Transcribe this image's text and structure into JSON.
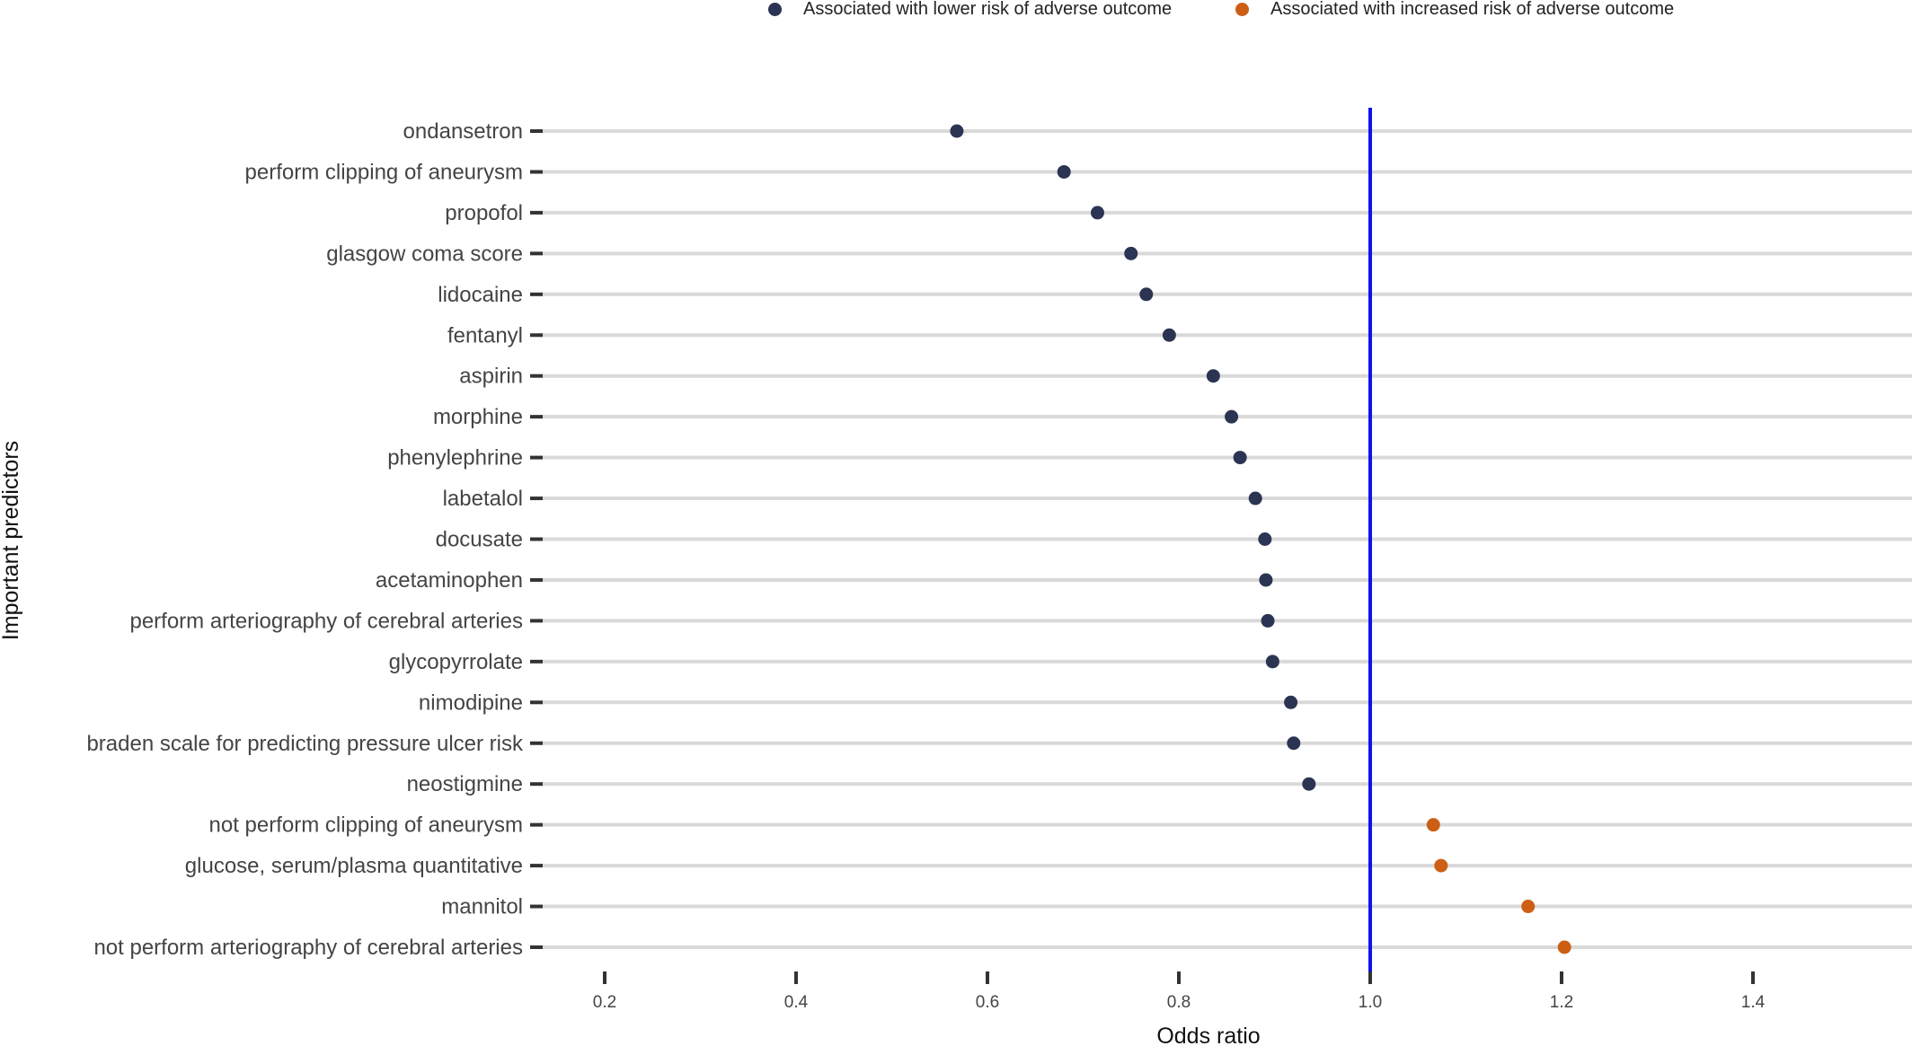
{
  "legend": {
    "lower_label": "Associated with lower risk of adverse outcome",
    "higher_label": "Associated with increased risk of adverse outcome",
    "lower_color": "#2b3452",
    "higher_color": "#cc5f14"
  },
  "chart_data": {
    "type": "scatter",
    "title": "",
    "xlabel": "Odds ratio",
    "ylabel": "Important predictors",
    "xlim": [
      0.12,
      1.55
    ],
    "x_ticks": [
      0.2,
      0.4,
      0.6,
      0.8,
      1.0,
      1.2,
      1.4
    ],
    "x_tick_labels": [
      "0.2",
      "0.4",
      "0.6",
      "0.8",
      "1.0",
      "1.2",
      "1.4"
    ],
    "reference_line": {
      "x": 1.0,
      "color": "#1010f0"
    },
    "grid": "horizontal",
    "legend_position": "top",
    "categories": [
      "ondansetron",
      "perform clipping of aneurysm",
      "propofol",
      "glasgow coma score",
      "lidocaine",
      "fentanyl",
      "aspirin",
      "morphine",
      "phenylephrine",
      "labetalol",
      "docusate",
      "acetaminophen",
      "perform arteriography of cerebral arteries",
      "glycopyrrolate",
      "nimodipine",
      "braden scale for predicting pressure ulcer risk",
      "neostigmine",
      "not perform clipping of aneurysm",
      "glucose, serum/plasma quantitative",
      "mannitol",
      "not perform arteriography of cerebral arteries"
    ],
    "values": [
      0.568,
      0.68,
      0.715,
      0.75,
      0.766,
      0.79,
      0.836,
      0.855,
      0.864,
      0.88,
      0.89,
      0.891,
      0.893,
      0.898,
      0.917,
      0.92,
      0.936,
      1.066,
      1.074,
      1.165,
      1.203
    ],
    "groups": [
      "lower",
      "lower",
      "lower",
      "lower",
      "lower",
      "lower",
      "lower",
      "lower",
      "lower",
      "lower",
      "lower",
      "lower",
      "lower",
      "lower",
      "lower",
      "lower",
      "lower",
      "higher",
      "higher",
      "higher",
      "higher"
    ]
  }
}
